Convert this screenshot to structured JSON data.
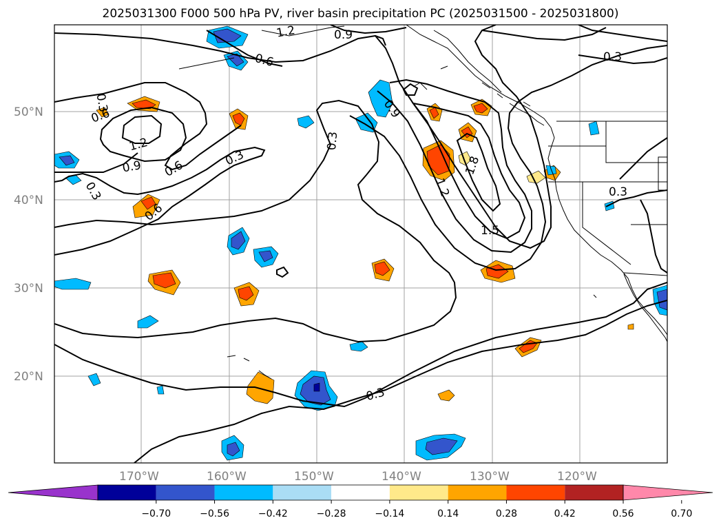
{
  "title": "2025031300 F000 500 hPa PV, river basin precipitation PC (2025031500 - 2025031800)",
  "lat_labels": [
    "50°N",
    "40°N",
    "30°N",
    "20°N"
  ],
  "lon_labels": [
    "170°W",
    "160°W",
    "150°W",
    "140°W",
    "130°W",
    "120°W"
  ],
  "pv_contour_labels": [
    "1.2",
    "0.9",
    "0.6",
    "0.3",
    "0.6",
    "0.6",
    "1.2",
    "0.9",
    "0.6",
    "0.3",
    "0.3",
    "0.3",
    "0.9",
    "0.3",
    "1.2",
    "1.8",
    "1.5",
    "0.3",
    "0.3"
  ],
  "colorbar": {
    "tick_labels": [
      "−0.70",
      "−0.56",
      "−0.42",
      "−0.28",
      "−0.14",
      "0.14",
      "0.28",
      "0.42",
      "0.56",
      "0.70"
    ],
    "colors": [
      "#9933cc",
      "#000099",
      "#3355cc",
      "#00bbff",
      "#aaddf5",
      "#ffffff",
      "#ffe98a",
      "#ffa500",
      "#ff4500",
      "#b22222",
      "#ff88aa"
    ]
  },
  "colors": {
    "coast": "#000000",
    "grid": "#a0a0a0",
    "pv_contour": "#000000"
  }
}
